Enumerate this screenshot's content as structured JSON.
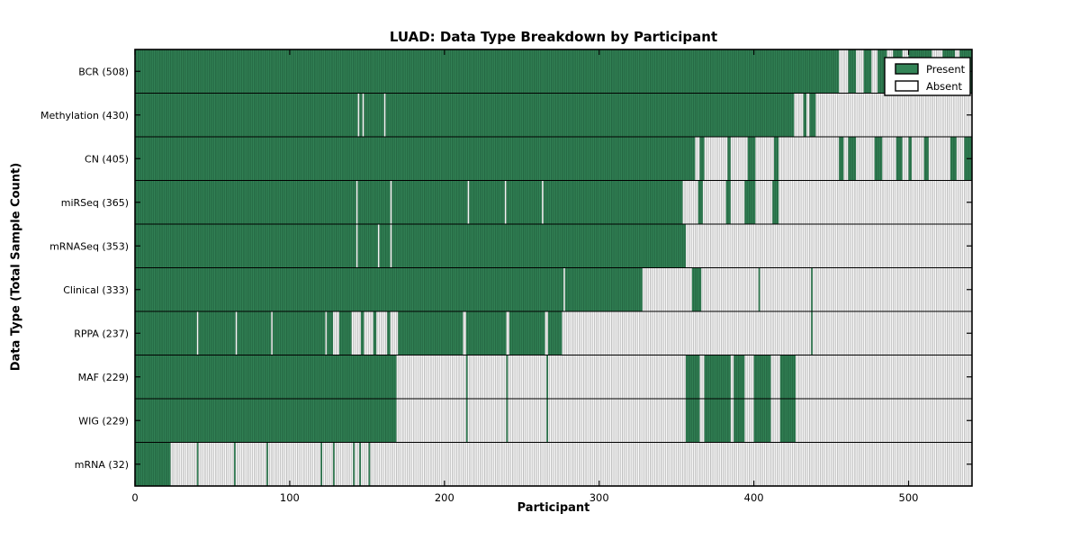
{
  "chart_data": {
    "type": "heatmap",
    "title": "LUAD: Data Type Breakdown by Participant",
    "xlabel": "Participant",
    "ylabel": "Data Type (Total Sample Count)",
    "xlim": [
      0,
      541
    ],
    "xticks": [
      0,
      100,
      200,
      300,
      400,
      500
    ],
    "grid": false,
    "legend": {
      "position": "upper right",
      "entries": [
        {
          "label": "Present",
          "swatch": "present"
        },
        {
          "label": "Absent",
          "swatch": "absent"
        }
      ]
    },
    "colors": {
      "present_fill": "#338457",
      "present_hatch": "#1d5a38",
      "absent_fill": "#ffffff",
      "absent_hatch": "#a0a0a0",
      "axis": "#000000",
      "background": "#ffffff"
    },
    "value_semantics": {
      "present": "Present",
      "absent": "Absent"
    },
    "rows": [
      {
        "label": "BCR (508)",
        "data_type": "BCR",
        "count": 508,
        "present_ranges": [
          [
            0,
            455
          ],
          [
            461,
            466
          ],
          [
            471,
            476
          ],
          [
            480,
            486
          ],
          [
            490,
            496
          ],
          [
            500,
            515
          ],
          [
            522,
            530
          ],
          [
            533,
            541
          ]
        ]
      },
      {
        "label": "Methylation (430)",
        "data_type": "Methylation",
        "count": 430,
        "present_ranges": [
          [
            0,
            144
          ],
          [
            145,
            147
          ],
          [
            148,
            161
          ],
          [
            162,
            426
          ],
          [
            432,
            434
          ],
          [
            436,
            440
          ]
        ]
      },
      {
        "label": "CN (405)",
        "data_type": "CN",
        "count": 405,
        "present_ranges": [
          [
            0,
            362
          ],
          [
            365,
            368
          ],
          [
            383,
            385
          ],
          [
            396,
            401
          ],
          [
            413,
            416
          ],
          [
            455,
            458
          ],
          [
            461,
            466
          ],
          [
            478,
            483
          ],
          [
            492,
            496
          ],
          [
            500,
            502
          ],
          [
            510,
            513
          ],
          [
            527,
            531
          ],
          [
            536,
            541
          ]
        ]
      },
      {
        "label": "miRSeq (365)",
        "data_type": "miRSeq",
        "count": 365,
        "present_ranges": [
          [
            0,
            143
          ],
          [
            144,
            165
          ],
          [
            166,
            215
          ],
          [
            216,
            239
          ],
          [
            240,
            263
          ],
          [
            264,
            354
          ],
          [
            364,
            367
          ],
          [
            382,
            385
          ],
          [
            394,
            401
          ],
          [
            412,
            416
          ]
        ]
      },
      {
        "label": "mRNASeq (353)",
        "data_type": "mRNASeq",
        "count": 353,
        "present_ranges": [
          [
            0,
            143
          ],
          [
            144,
            157
          ],
          [
            158,
            165
          ],
          [
            166,
            356
          ]
        ]
      },
      {
        "label": "Clinical (333)",
        "data_type": "Clinical",
        "count": 333,
        "present_ranges": [
          [
            0,
            277
          ],
          [
            278,
            328
          ],
          [
            360,
            366
          ],
          [
            403,
            404
          ],
          [
            437,
            438
          ]
        ]
      },
      {
        "label": "RPPA (237)",
        "data_type": "RPPA",
        "count": 237,
        "present_ranges": [
          [
            0,
            40
          ],
          [
            41,
            65
          ],
          [
            66,
            88
          ],
          [
            89,
            123
          ],
          [
            124,
            128
          ],
          [
            132,
            140
          ],
          [
            146,
            148
          ],
          [
            154,
            156
          ],
          [
            163,
            165
          ],
          [
            170,
            212
          ],
          [
            214,
            240
          ],
          [
            242,
            265
          ],
          [
            267,
            276
          ],
          [
            437,
            438
          ]
        ]
      },
      {
        "label": "MAF (229)",
        "data_type": "MAF",
        "count": 229,
        "present_ranges": [
          [
            0,
            169
          ],
          [
            214,
            215
          ],
          [
            240,
            241
          ],
          [
            266,
            267
          ],
          [
            356,
            365
          ],
          [
            368,
            385
          ],
          [
            387,
            394
          ],
          [
            400,
            411
          ],
          [
            417,
            427
          ]
        ]
      },
      {
        "label": "WIG (229)",
        "data_type": "WIG",
        "count": 229,
        "present_ranges": [
          [
            0,
            169
          ],
          [
            214,
            215
          ],
          [
            240,
            241
          ],
          [
            266,
            267
          ],
          [
            356,
            365
          ],
          [
            368,
            385
          ],
          [
            387,
            394
          ],
          [
            400,
            411
          ],
          [
            417,
            427
          ]
        ]
      },
      {
        "label": "mRNA (32)",
        "data_type": "mRNA",
        "count": 32,
        "present_ranges": [
          [
            0,
            23
          ],
          [
            40,
            41
          ],
          [
            64,
            65
          ],
          [
            85,
            86
          ],
          [
            120,
            121
          ],
          [
            128,
            129
          ],
          [
            141,
            142
          ],
          [
            145,
            146
          ],
          [
            151,
            152
          ]
        ]
      }
    ]
  }
}
